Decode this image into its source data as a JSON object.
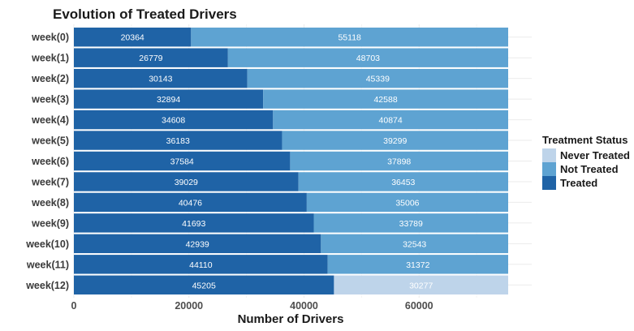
{
  "chart_data": {
    "type": "bar",
    "orientation": "horizontal",
    "stacked": true,
    "title": "Evolution of Treated Drivers",
    "xlabel": "Number of Drivers",
    "ylabel": "",
    "xlim": [
      0,
      75482
    ],
    "xticks": [
      0,
      20000,
      40000,
      60000
    ],
    "xtick_labels": [
      "0",
      "20000",
      "40000",
      "60000"
    ],
    "grid": true,
    "legend_position": "right",
    "categories": [
      "week(0)",
      "week(1)",
      "week(2)",
      "week(3)",
      "week(4)",
      "week(5)",
      "week(6)",
      "week(7)",
      "week(8)",
      "week(9)",
      "week(10)",
      "week(11)",
      "week(12)"
    ],
    "series": [
      {
        "name": "Treated",
        "color": "#1f63a6",
        "values": [
          20364,
          26779,
          30143,
          32894,
          34608,
          36183,
          37584,
          39029,
          40476,
          41693,
          42939,
          44110,
          45205
        ],
        "labels": [
          "20364",
          "26779",
          "30143",
          "32894",
          "34608",
          "36183",
          "37584",
          "39029",
          "40476",
          "41693",
          "42939",
          "44110",
          "45205"
        ]
      },
      {
        "name": "Not Treated",
        "color": "#5ea3d2",
        "values": [
          55118,
          48703,
          45339,
          42588,
          40874,
          39299,
          37898,
          36453,
          35006,
          33789,
          32543,
          31372,
          null
        ],
        "labels": [
          "55118",
          "48703",
          "45339",
          "42588",
          "40874",
          "39299",
          "37898",
          "36453",
          "35006",
          "33789",
          "32543",
          "31372",
          ""
        ]
      },
      {
        "name": "Never Treated",
        "color": "#bed4ea",
        "values": [
          null,
          null,
          null,
          null,
          null,
          null,
          null,
          null,
          null,
          null,
          null,
          null,
          30277
        ],
        "labels": [
          "",
          "",
          "",
          "",
          "",
          "",
          "",
          "",
          "",
          "",
          "",
          "",
          "30277"
        ]
      }
    ],
    "legend": {
      "title": "Treatment Status",
      "entries": [
        "Never Treated",
        "Not Treated",
        "Treated"
      ]
    }
  }
}
